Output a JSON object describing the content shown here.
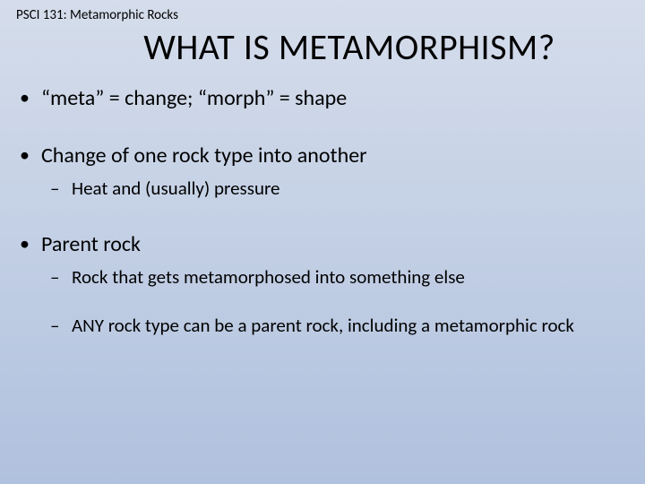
{
  "colors": {
    "bg_top": "#d5ddeb",
    "bg_bottom": "#b0c1de",
    "text": "#000000"
  },
  "typography": {
    "family": "Calibri",
    "header_size_pt": 11,
    "title_size_pt": 30,
    "bullet_size_pt": 18,
    "sub_bullet_size_pt": 16
  },
  "header": "PSCI 131: Metamorphic Rocks",
  "title": "WHAT IS METAMORPHISM?",
  "bullets": [
    {
      "text": "“meta” = change; “morph” = shape",
      "children": []
    },
    {
      "text": "Change of one rock type into another",
      "children": [
        "Heat and (usually) pressure"
      ]
    },
    {
      "text": "Parent rock",
      "children": [
        "Rock that gets metamorphosed into something else",
        "ANY rock type can be a parent rock, including a metamorphic rock"
      ]
    }
  ]
}
